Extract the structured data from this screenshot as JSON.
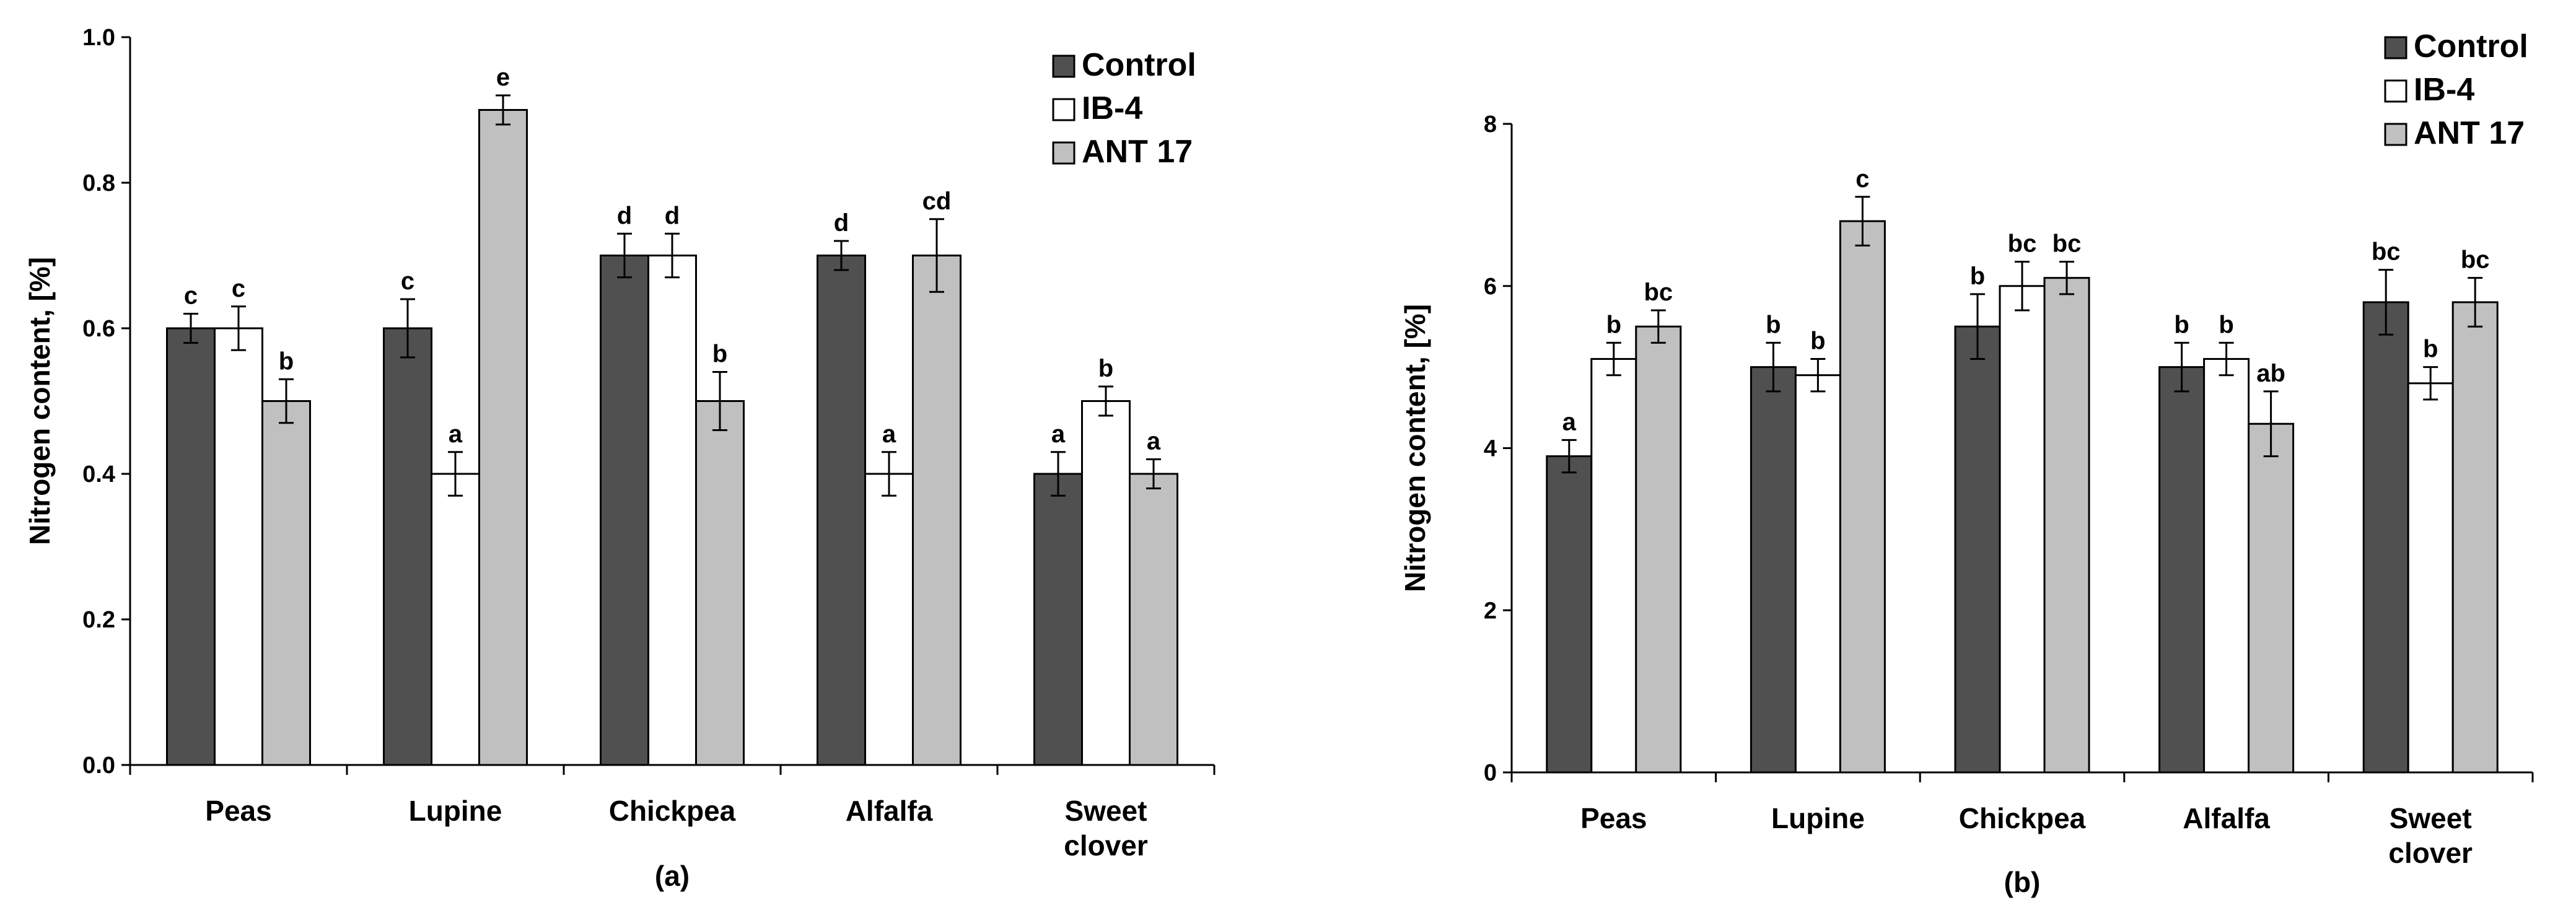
{
  "colors": {
    "Control": "#505050",
    "IB-4": "#ffffff",
    "ANT 17": "#c0c0c0",
    "stroke": "#000000"
  },
  "chart_data": [
    {
      "panel": "(a)",
      "type": "bar",
      "ylabel": "Nitrogen content, [%]",
      "ylim": [
        0,
        1.0
      ],
      "yticks": [
        "0.0",
        "0.2",
        "0.4",
        "0.6",
        "0.8",
        "1.0"
      ],
      "categories": [
        "Peas",
        "Lupine",
        "Chickpea",
        "Alfalfa",
        "Sweet\nclover"
      ],
      "legend": [
        "Control",
        "IB-4",
        "ANT 17"
      ],
      "series": [
        {
          "name": "Control",
          "values": [
            0.6,
            0.6,
            0.7,
            0.7,
            0.4
          ],
          "errors": [
            0.02,
            0.04,
            0.03,
            0.02,
            0.03
          ],
          "letters": [
            "c",
            "c",
            "d",
            "d",
            "a"
          ]
        },
        {
          "name": "IB-4",
          "values": [
            0.6,
            0.4,
            0.7,
            0.4,
            0.5
          ],
          "errors": [
            0.03,
            0.03,
            0.03,
            0.03,
            0.02
          ],
          "letters": [
            "c",
            "a",
            "d",
            "a",
            "b"
          ]
        },
        {
          "name": "ANT 17",
          "values": [
            0.5,
            0.9,
            0.5,
            0.7,
            0.4
          ],
          "errors": [
            0.03,
            0.02,
            0.04,
            0.05,
            0.02
          ],
          "letters": [
            "b",
            "e",
            "b",
            "cd",
            "a"
          ]
        }
      ]
    },
    {
      "panel": "(b)",
      "type": "bar",
      "ylabel": "Nitrogen content, [%]",
      "ylim": [
        0,
        8
      ],
      "yticks": [
        "0",
        "2",
        "4",
        "6",
        "8"
      ],
      "categories": [
        "Peas",
        "Lupine",
        "Chickpea",
        "Alfalfa",
        "Sweet\nclover"
      ],
      "legend": [
        "Control",
        "IB-4",
        "ANT 17"
      ],
      "series": [
        {
          "name": "Control",
          "values": [
            3.9,
            5.0,
            5.5,
            5.0,
            5.8
          ],
          "errors": [
            0.2,
            0.3,
            0.4,
            0.3,
            0.4
          ],
          "letters": [
            "a",
            "b",
            "b",
            "b",
            "bc"
          ]
        },
        {
          "name": "IB-4",
          "values": [
            5.1,
            4.9,
            6.0,
            5.1,
            4.8
          ],
          "errors": [
            0.2,
            0.2,
            0.3,
            0.2,
            0.2
          ],
          "letters": [
            "b",
            "b",
            "bc",
            "b",
            "b"
          ]
        },
        {
          "name": "ANT 17",
          "values": [
            5.5,
            6.8,
            6.1,
            4.3,
            5.8
          ],
          "errors": [
            0.2,
            0.3,
            0.2,
            0.4,
            0.3
          ],
          "letters": [
            "bc",
            "c",
            "bc",
            "ab",
            "bc"
          ]
        }
      ]
    }
  ]
}
